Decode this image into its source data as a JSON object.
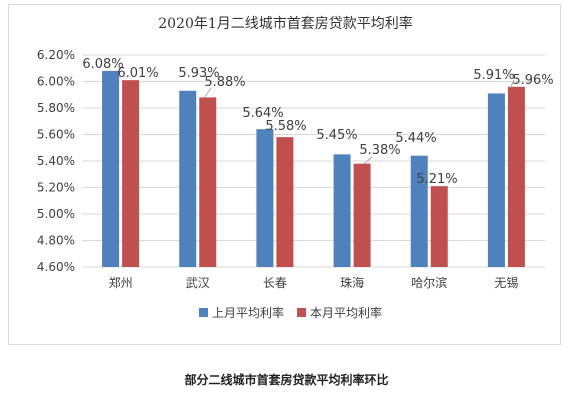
{
  "chart_data": {
    "type": "bar",
    "title": "2020年1月二线城市首套房贷款平均利率",
    "categories": [
      "郑州",
      "武汉",
      "长春",
      "珠海",
      "哈尔滨",
      "无锡"
    ],
    "series": [
      {
        "name": "上月平均利率",
        "color": "#4F81BD",
        "values": [
          6.08,
          5.93,
          5.64,
          5.45,
          5.44,
          5.91
        ],
        "labels": [
          "6.08%",
          "5.93%",
          "5.64%",
          "5.45%",
          "5.44%",
          "5.91%"
        ]
      },
      {
        "name": "本月平均利率",
        "color": "#C0504D",
        "values": [
          6.01,
          5.88,
          5.58,
          5.38,
          5.21,
          5.96
        ],
        "labels": [
          "6.01%",
          "5.88%",
          "5.58%",
          "5.38%",
          "5.21%",
          "5.96%"
        ]
      }
    ],
    "y_ticks": [
      "6.20%",
      "6.00%",
      "5.80%",
      "5.60%",
      "5.40%",
      "5.20%",
      "5.00%",
      "4.80%",
      "4.60%"
    ],
    "ylim": [
      4.6,
      6.2
    ],
    "y_unit": "%",
    "grid": true,
    "legend_position": "bottom"
  },
  "caption": "部分二线城市首套房贷款平均利率环比"
}
